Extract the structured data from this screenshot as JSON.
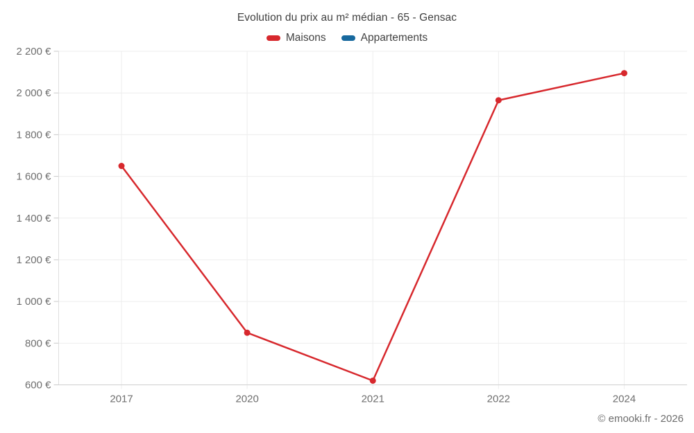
{
  "title": "Evolution du prix au m² médian - 65 - Gensac",
  "footer": "© emooki.fr - 2026",
  "legend": [
    {
      "label": "Maisons",
      "color": "#d7282d"
    },
    {
      "label": "Appartements",
      "color": "#17699e"
    }
  ],
  "chart_data": {
    "type": "line",
    "title": "Evolution du prix au m² médian - 65 - Gensac",
    "categories": [
      "2017",
      "2020",
      "2021",
      "2022",
      "2024"
    ],
    "series": [
      {
        "name": "Maisons",
        "color": "#d7282d",
        "values": [
          1650,
          850,
          620,
          1965,
          2095
        ]
      },
      {
        "name": "Appartements",
        "color": "#17699e",
        "values": []
      }
    ],
    "xlabel": "",
    "ylabel": "",
    "ylim": [
      600,
      2200
    ],
    "ytick_step": 200,
    "ytick_labels": [
      "600 €",
      "800 €",
      "1 000 €",
      "1 200 €",
      "1 400 €",
      "1 600 €",
      "1 800 €",
      "2 000 €",
      "2 200 €"
    ],
    "currency_suffix": "€",
    "grid": true,
    "legend_position": "top"
  }
}
